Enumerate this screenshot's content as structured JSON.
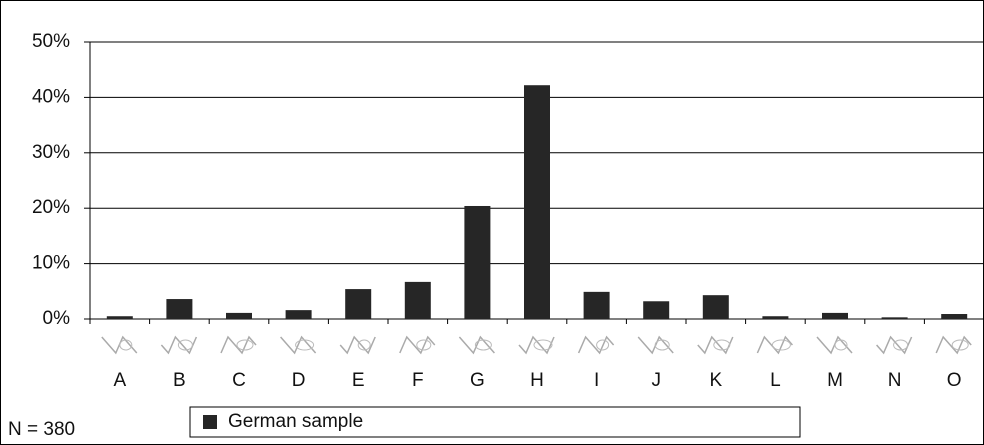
{
  "chart_data": {
    "type": "bar",
    "annotation": "N = 380",
    "categories": [
      "A",
      "B",
      "C",
      "D",
      "E",
      "F",
      "G",
      "H",
      "I",
      "J",
      "K",
      "L",
      "M",
      "N",
      "O"
    ],
    "series": [
      {
        "name": "German sample",
        "color": "#262626",
        "values": [
          0.5,
          3.6,
          1.1,
          1.6,
          5.4,
          6.7,
          20.4,
          42.2,
          4.9,
          3.2,
          4.3,
          0.5,
          1.1,
          0.3,
          0.9
        ]
      }
    ],
    "ylim": [
      0,
      50
    ],
    "yticks": [
      {
        "value": 0,
        "label": "0%"
      },
      {
        "value": 10,
        "label": "10%"
      },
      {
        "value": 20,
        "label": "20%"
      },
      {
        "value": 30,
        "label": "30%"
      },
      {
        "value": 40,
        "label": "40%"
      },
      {
        "value": 50,
        "label": "50%"
      }
    ],
    "grid": true,
    "legend": "bottom"
  }
}
